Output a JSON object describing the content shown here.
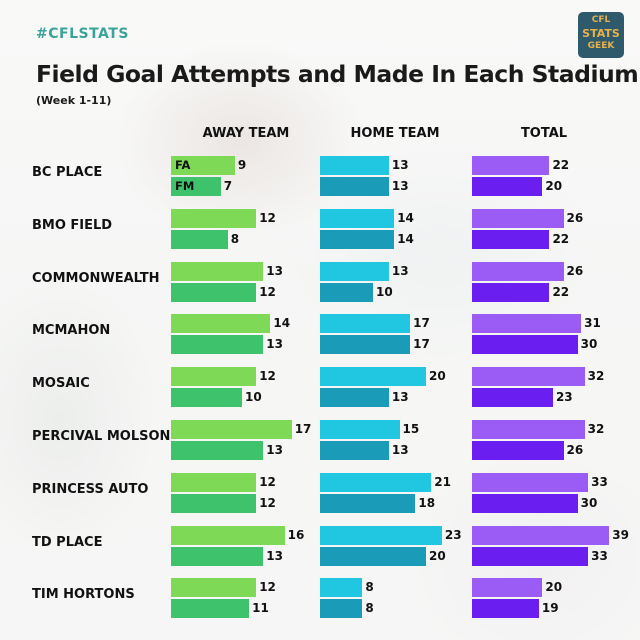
{
  "header": {
    "hashtag": "#CFLSTATS",
    "title": "Field Goal Attempts and Made In Each Stadium",
    "subtitle": "(Week 1-11)",
    "logo_lines": [
      "CFL",
      "STATS",
      "GEEK"
    ]
  },
  "legend": {
    "attempts_label": "FA",
    "made_label": "FM"
  },
  "colors": {
    "away_attempts": "#7ed957",
    "away_made": "#3ec26b",
    "home_attempts": "#21c6e0",
    "home_made": "#1a9bb8",
    "total_attempts": "#9b5cf6",
    "total_made": "#6a1ff0",
    "hashtag": "#3aa39a",
    "logo_bg": "#2f5a6b",
    "logo_text": "#e7b24a"
  },
  "chart_data": {
    "type": "bar",
    "orientation": "horizontal",
    "title": "Field Goal Attempts and Made In Each Stadium",
    "subtitle": "(Week 1-11)",
    "panels": [
      "AWAY TEAM",
      "HOME TEAM",
      "TOTAL"
    ],
    "categories": [
      "BC PLACE",
      "BMO FIELD",
      "COMMONWEALTH",
      "MCMAHON",
      "MOSAIC",
      "PERCIVAL MOLSON",
      "PRINCESS AUTO",
      "TD PLACE",
      "TIM HORTONS"
    ],
    "series": [
      {
        "name": "FA",
        "panel": "AWAY TEAM",
        "values": [
          9,
          12,
          13,
          14,
          12,
          17,
          12,
          16,
          12
        ]
      },
      {
        "name": "FM",
        "panel": "AWAY TEAM",
        "values": [
          7,
          8,
          12,
          13,
          10,
          13,
          12,
          13,
          11
        ]
      },
      {
        "name": "FA",
        "panel": "HOME TEAM",
        "values": [
          13,
          14,
          13,
          17,
          20,
          15,
          21,
          23,
          8
        ]
      },
      {
        "name": "FM",
        "panel": "HOME TEAM",
        "values": [
          13,
          14,
          10,
          17,
          13,
          13,
          18,
          20,
          8
        ]
      },
      {
        "name": "FA",
        "panel": "TOTAL",
        "values": [
          22,
          26,
          26,
          31,
          32,
          32,
          33,
          39,
          20
        ]
      },
      {
        "name": "FM",
        "panel": "TOTAL",
        "values": [
          20,
          22,
          22,
          30,
          23,
          26,
          30,
          33,
          19
        ]
      }
    ],
    "legend_position": "inside first bars",
    "grid": false
  }
}
